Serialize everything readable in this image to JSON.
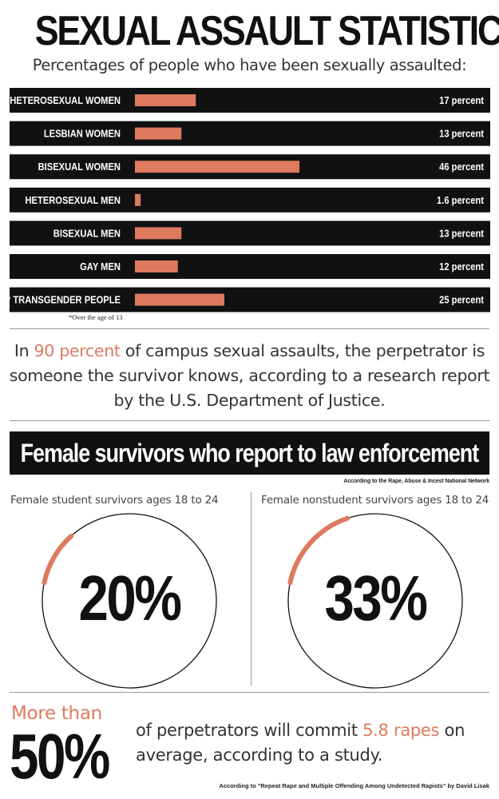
{
  "header": {
    "title": "SEXUAL ASSAULT STATISTICS",
    "subtitle": "Percentages of people who have been sexually assaulted:"
  },
  "chart_data": {
    "type": "bar",
    "orientation": "horizontal",
    "categories": [
      "HETEROSEXUAL WOMEN",
      "LESBIAN WOMEN",
      "BISEXUAL WOMEN",
      "HETEROSEXUAL MEN",
      "BISEXUAL MEN",
      "GAY MEN",
      "* TRANSGENDER PEOPLE"
    ],
    "values": [
      17,
      13,
      46,
      1.6,
      13,
      12,
      25
    ],
    "value_labels": [
      "17 percent",
      "13 percent",
      "46 percent",
      "1.6 percent",
      "13 percent",
      "12 percent",
      "25 percent"
    ],
    "xlim": [
      0,
      100
    ],
    "bar_color": "#dd7a5f",
    "row_color": "#111111",
    "title": "",
    "xlabel": "",
    "ylabel": ""
  },
  "footnote": "*Over the age of 13",
  "stat": {
    "pre": "In ",
    "highlight": "90 percent",
    "post": " of campus sexual assaults, the perpetrator is someone the survivor knows, according to a research report by the U.S. Department of Justice."
  },
  "report": {
    "banner": "Female survivors who report to law enforcement",
    "source": "According to the Rape, Abuse & Incest National Network",
    "gauges": [
      {
        "label": "Female student survivors ages 18 to 24",
        "value": 20,
        "value_text": "20%"
      },
      {
        "label": "Female nonstudent survivors ages 18 to 24",
        "value": 33,
        "value_text": "33%"
      }
    ]
  },
  "bottom": {
    "more_than": "More than",
    "big_value": "50%",
    "text_pre": "of perpetrators will commit ",
    "highlight": "5.8 rapes",
    "text_post": " on average, according to a study.",
    "source": "According to \"Repeat Rape and Multiple Offending Among Undetected Rapists\" by David Lisak"
  },
  "colors": {
    "accent": "#dd7a5f",
    "dark": "#111111"
  }
}
